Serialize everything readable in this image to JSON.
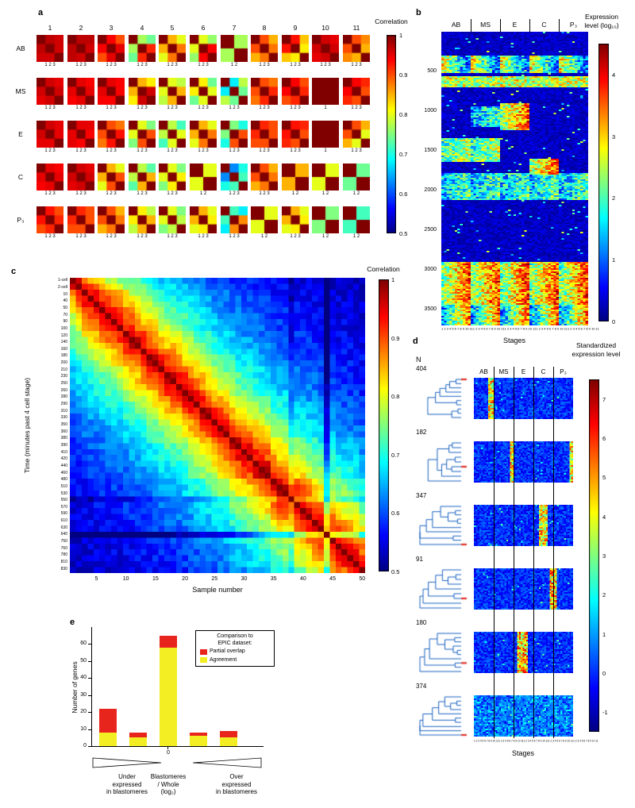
{
  "chart_data": [
    {
      "panel": "a",
      "type": "heatmap",
      "label": "a",
      "description": "Pairwise correlation matrices between replicate samples for each lineage (rows) and stage (columns)",
      "col_headers": [
        "1",
        "2",
        "3",
        "4",
        "5",
        "6",
        "7",
        "8",
        "9",
        "10",
        "11"
      ],
      "row_labels": [
        "AB",
        "MS",
        "E",
        "C",
        "P₃"
      ],
      "replicate_tick_labels": [
        "1",
        "1 2",
        "1 2 3"
      ],
      "colorbar": {
        "title": "Correlation",
        "ticks": [
          "1",
          "0.9",
          "0.8",
          "0.7",
          "0.6",
          "0.5"
        ],
        "vmin": 0.5,
        "vmax": 1
      },
      "cells": [
        [
          {
            "reps": 3,
            "corr": [
              0.97,
              0.96,
              0.96
            ]
          },
          {
            "reps": 3,
            "corr": [
              0.97,
              0.97,
              0.96
            ]
          },
          {
            "reps": 3,
            "corr": [
              0.94,
              0.9,
              0.95
            ]
          },
          {
            "reps": 3,
            "corr": [
              0.77,
              0.74,
              0.92
            ]
          },
          {
            "reps": 3,
            "corr": [
              0.85,
              0.8,
              0.88
            ]
          },
          {
            "reps": 3,
            "corr": [
              0.8,
              0.76,
              0.94
            ]
          },
          {
            "reps": 2,
            "corr": [
              0.77
            ]
          },
          {
            "reps": 3,
            "corr": [
              0.9,
              0.85,
              0.88
            ]
          },
          {
            "reps": 3,
            "corr": [
              0.93,
              0.84,
              0.82
            ]
          },
          {
            "reps": 3,
            "corr": [
              0.96,
              0.95,
              0.96
            ]
          },
          {
            "reps": 3,
            "corr": [
              0.9,
              0.87,
              0.85
            ]
          }
        ],
        [
          {
            "reps": 3,
            "corr": [
              0.96,
              0.95,
              0.96
            ]
          },
          {
            "reps": 3,
            "corr": [
              0.95,
              0.94,
              0.95
            ]
          },
          {
            "reps": 3,
            "corr": [
              0.95,
              0.94,
              0.94
            ]
          },
          {
            "reps": 3,
            "corr": [
              0.85,
              0.82,
              0.96
            ]
          },
          {
            "reps": 3,
            "corr": [
              0.8,
              0.78,
              0.85
            ]
          },
          {
            "reps": 3,
            "corr": [
              0.82,
              0.74,
              0.8
            ]
          },
          {
            "reps": 3,
            "corr": [
              0.68,
              0.78,
              0.74
            ]
          },
          {
            "reps": 3,
            "corr": [
              0.9,
              0.88,
              0.92
            ]
          },
          {
            "reps": 3,
            "corr": [
              0.94,
              0.9,
              0.92
            ]
          },
          {
            "reps": 1,
            "corr": []
          },
          {
            "reps": 3,
            "corr": [
              0.94,
              0.92,
              0.9
            ]
          }
        ],
        [
          {
            "reps": 3,
            "corr": [
              0.96,
              0.95,
              0.95
            ]
          },
          {
            "reps": 3,
            "corr": [
              0.95,
              0.95,
              0.94
            ]
          },
          {
            "reps": 3,
            "corr": [
              0.9,
              0.88,
              0.93
            ]
          },
          {
            "reps": 3,
            "corr": [
              0.8,
              0.75,
              0.9
            ]
          },
          {
            "reps": 3,
            "corr": [
              0.78,
              0.72,
              0.8
            ]
          },
          {
            "reps": 3,
            "corr": [
              0.85,
              0.8,
              0.88
            ]
          },
          {
            "reps": 3,
            "corr": [
              0.75,
              0.7,
              0.9
            ]
          },
          {
            "reps": 3,
            "corr": [
              0.92,
              0.9,
              0.9
            ]
          },
          {
            "reps": 3,
            "corr": [
              0.93,
              0.92,
              0.9
            ]
          },
          {
            "reps": 1,
            "corr": []
          },
          {
            "reps": 3,
            "corr": [
              0.9,
              0.85,
              0.8
            ]
          }
        ],
        [
          {
            "reps": 3,
            "corr": [
              0.95,
              0.94,
              0.95
            ]
          },
          {
            "reps": 3,
            "corr": [
              0.96,
              0.95,
              0.96
            ]
          },
          {
            "reps": 3,
            "corr": [
              0.85,
              0.8,
              0.9
            ]
          },
          {
            "reps": 3,
            "corr": [
              0.78,
              0.73,
              0.85
            ]
          },
          {
            "reps": 3,
            "corr": [
              0.8,
              0.75,
              0.82
            ]
          },
          {
            "reps": 2,
            "corr": [
              0.8
            ]
          },
          {
            "reps": 3,
            "corr": [
              0.63,
              0.7,
              0.72
            ]
          },
          {
            "reps": 3,
            "corr": [
              0.9,
              0.85,
              0.88
            ]
          },
          {
            "reps": 2,
            "corr": [
              0.85
            ]
          },
          {
            "reps": 2,
            "corr": [
              0.8
            ]
          },
          {
            "reps": 2,
            "corr": [
              0.74
            ]
          }
        ],
        [
          {
            "reps": 3,
            "corr": [
              0.93,
              0.9,
              0.92
            ]
          },
          {
            "reps": 3,
            "corr": [
              0.92,
              0.9,
              0.9
            ]
          },
          {
            "reps": 3,
            "corr": [
              0.9,
              0.85,
              0.88
            ]
          },
          {
            "reps": 3,
            "corr": [
              0.82,
              0.78,
              0.85
            ]
          },
          {
            "reps": 3,
            "corr": [
              0.8,
              0.75,
              0.78
            ]
          },
          {
            "reps": 3,
            "corr": [
              0.85,
              0.8,
              0.82
            ]
          },
          {
            "reps": 3,
            "corr": [
              0.72,
              0.68,
              0.87
            ]
          },
          {
            "reps": 2,
            "corr": [
              0.8
            ]
          },
          {
            "reps": 3,
            "corr": [
              0.85,
              0.8,
              0.82
            ]
          },
          {
            "reps": 2,
            "corr": [
              0.75
            ]
          },
          {
            "reps": 2,
            "corr": [
              0.72
            ]
          }
        ]
      ]
    },
    {
      "panel": "b",
      "type": "heatmap",
      "label": "b",
      "description": "Gene expression heatmap across lineages and stages",
      "group_headers": [
        "AB",
        "MS",
        "E",
        "C",
        "P₃"
      ],
      "stages_per_group": 11,
      "n_genes": 3700,
      "ytick_labels": [
        "500",
        "1000",
        "1500",
        "2000",
        "2500",
        "3000",
        "3500"
      ],
      "stage_ticks": [
        "1",
        "2",
        "3",
        "4",
        "5",
        "6",
        "7",
        "8",
        "9",
        "10",
        "11"
      ],
      "xlabel": "Stages",
      "colorbar": {
        "title_lines": [
          "Expression",
          "level (log₁₀)"
        ],
        "ticks": [
          "4",
          "3",
          "2",
          "1",
          "0"
        ],
        "vmin": 0,
        "vmax": 4.5
      },
      "expression_bands": [
        {
          "genes": [
            300,
            520
          ],
          "groups": "all",
          "level": 1.9,
          "stage_gradient": -0.6
        },
        {
          "genes": [
            560,
            700
          ],
          "groups": "all",
          "level": 2.6,
          "stage_gradient": 0
        },
        {
          "genes": [
            900,
            1250
          ],
          "groups": [
            2
          ],
          "level": 2.9,
          "stage_gradient": 0.4
        },
        {
          "genes": [
            950,
            1200
          ],
          "groups": [
            1
          ],
          "level": 1.6,
          "stage_gradient": 0.2
        },
        {
          "genes": [
            1350,
            1650
          ],
          "groups": [
            0,
            1
          ],
          "level": 2.2,
          "stage_gradient": 0.2
        },
        {
          "genes": [
            1600,
            1800
          ],
          "groups": [
            3
          ],
          "level": 3.0,
          "stage_gradient": 0.3
        },
        {
          "genes": [
            1780,
            2120
          ],
          "groups": "all",
          "level": 1.7,
          "stage_gradient": 0.2
        },
        {
          "genes": [
            2900,
            3450
          ],
          "groups": "all",
          "level": 2.9,
          "stage_gradient": 0.5
        },
        {
          "genes": [
            3450,
            3700
          ],
          "groups": "all",
          "level": 2.3,
          "stage_gradient": 0.7
        }
      ],
      "seed": 7
    },
    {
      "panel": "c",
      "type": "heatmap",
      "label": "c",
      "description": "Sample-by-sample correlation matrix ordered by developmental time",
      "n_samples": 50,
      "ylabel": "Time (minutes past 4 cell stage)",
      "xlabel": "Sample number",
      "ytick_labels": [
        "1-cell",
        "2-cell",
        "10",
        "40",
        "50",
        "70",
        "90",
        "100",
        "120",
        "140",
        "160",
        "180",
        "200",
        "210",
        "230",
        "250",
        "260",
        "280",
        "290",
        "310",
        "330",
        "350",
        "360",
        "380",
        "390",
        "410",
        "420",
        "440",
        "460",
        "480",
        "510",
        "530",
        "550",
        "570",
        "590",
        "610",
        "630",
        "640",
        "750",
        "760",
        "780",
        "810",
        "830"
      ],
      "xticks": [
        "5",
        "10",
        "15",
        "20",
        "25",
        "30",
        "35",
        "40",
        "45",
        "50"
      ],
      "colorbar": {
        "title": "Correlation",
        "ticks": [
          "1",
          "0.9",
          "0.8",
          "0.7",
          "0.6",
          "0.5"
        ],
        "vmin": 0.5,
        "vmax": 1
      },
      "time_span_minutes": [
        0,
        830
      ],
      "decay_minutes": 260,
      "outlier_samples": [
        {
          "index": 43,
          "drop": 0.1
        },
        {
          "index": 37,
          "drop": 0.04
        }
      ],
      "seed": 11
    },
    {
      "panel": "d",
      "type": "heatmap",
      "label": "d",
      "description": "Clustered standardized expression heatmaps with dendrograms; N = number of genes per cluster",
      "n_label": "N",
      "group_headers": [
        "AB",
        "MS",
        "E",
        "C",
        "P₃"
      ],
      "stage_ticks": [
        "1",
        "2",
        "3",
        "4",
        "5",
        "6",
        "7",
        "8",
        "9",
        "10",
        "11"
      ],
      "xlabel": "Stages",
      "colorbar": {
        "title_lines": [
          "Standardized",
          "expression level"
        ],
        "ticks": [
          "7",
          "6",
          "5",
          "4",
          "3",
          "2",
          "1",
          "0",
          "-1"
        ],
        "vmin": -1.5,
        "vmax": 7.5
      },
      "clusters": [
        {
          "n": "404",
          "leaves": 10,
          "highlights": [
            {
              "cols": [
                8,
                10
              ],
              "level": 5.0
            }
          ]
        },
        {
          "n": "182",
          "leaves": 9,
          "highlights": [
            {
              "cols": [
                20,
                21
              ],
              "level": 5.0
            },
            {
              "cols": [
                53,
                54
              ],
              "level": 5.0
            }
          ]
        },
        {
          "n": "347",
          "leaves": 10,
          "highlights": [
            {
              "cols": [
                36,
                40
              ],
              "level": 5.0
            }
          ]
        },
        {
          "n": "91",
          "leaves": 9,
          "highlights": [
            {
              "cols": [
                42,
                45
              ],
              "level": 5.5
            }
          ]
        },
        {
          "n": "180",
          "leaves": 10,
          "highlights": [
            {
              "cols": [
                24,
                29
              ],
              "level": 5.5
            }
          ]
        },
        {
          "n": "374",
          "leaves": 10,
          "highlights": [],
          "base_boost": 0.9
        }
      ],
      "seed": 23
    },
    {
      "panel": "e",
      "type": "bar",
      "label": "e",
      "title": "Comparison of blastomere vs whole-embryo expression",
      "ylabel": "Number of genes",
      "yticks": [
        0,
        10,
        20,
        30,
        40,
        50,
        60
      ],
      "ymax": 70,
      "x_center_tick": "0",
      "xlabel_lines": [
        "Blastomeres",
        "/ Whole",
        "(log₂)"
      ],
      "left_annotation_lines": [
        "Under",
        "expressed",
        "in blastomeres"
      ],
      "right_annotation_lines": [
        "Over",
        "expressed",
        "in blastomeres"
      ],
      "legend": {
        "title_lines": [
          "Comparison to",
          "EPIC dataset:"
        ],
        "items": [
          {
            "label": "Partial overlap",
            "color": "#e8251d"
          },
          {
            "label": "Agreement",
            "color": "#f3ee24"
          }
        ]
      },
      "categories": [
        "-2",
        "-1",
        "0",
        "1",
        "2"
      ],
      "series": [
        {
          "name": "Agreement",
          "color": "#f3ee24",
          "values": [
            8,
            5,
            58,
            6,
            5
          ]
        },
        {
          "name": "Partial overlap",
          "color": "#e8251d",
          "values": [
            14,
            3,
            7,
            2,
            4
          ]
        }
      ]
    }
  ]
}
